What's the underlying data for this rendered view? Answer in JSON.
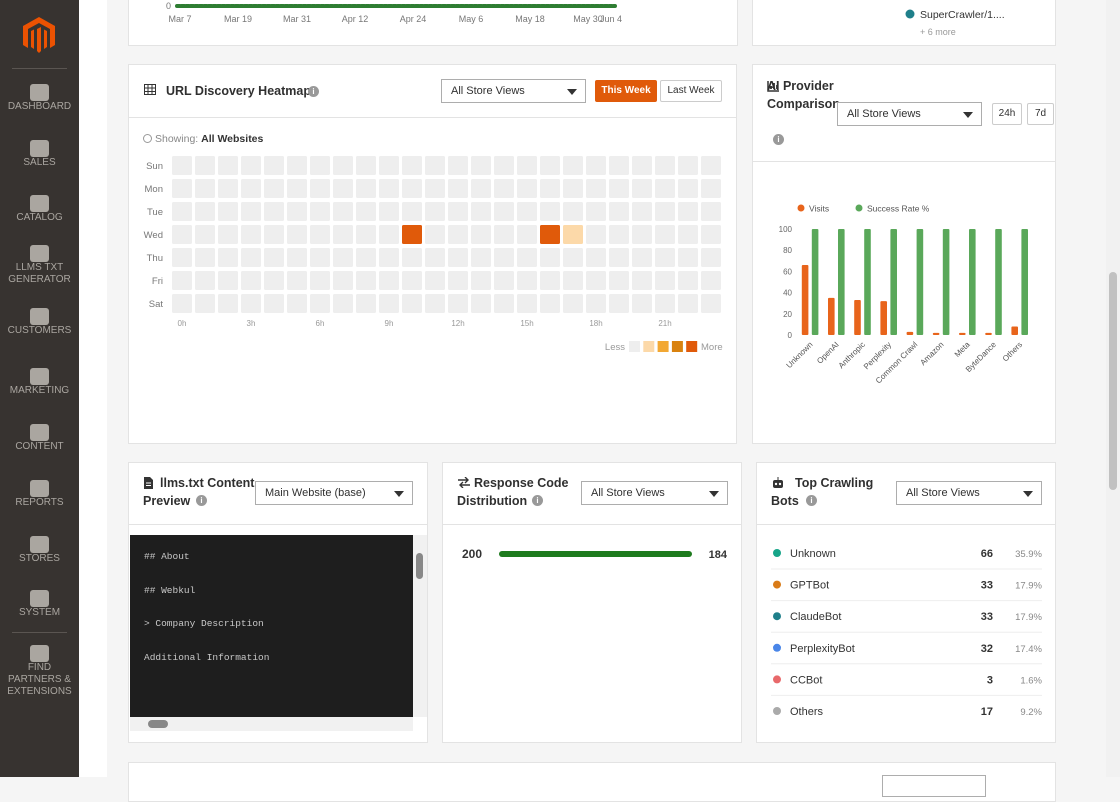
{
  "sidebar": {
    "items": [
      "DASHBOARD",
      "SALES",
      "CATALOG",
      "LLMS TXT GENERATOR",
      "CUSTOMERS",
      "MARKETING",
      "CONTENT",
      "REPORTS",
      "STORES",
      "SYSTEM",
      "FIND PARTNERS & EXTENSIONS"
    ]
  },
  "chart_data": [
    {
      "type": "line",
      "yticks": [
        0
      ],
      "x": [
        "Mar 7",
        "Mar 19",
        "Mar 31",
        "Apr 12",
        "Apr 24",
        "May 6",
        "May 18",
        "May 30",
        "Jun 4"
      ],
      "series": [
        {
          "name": "SuperCrawler/1....",
          "color": "#1f7f8a"
        }
      ],
      "more": "+ 6 more"
    },
    {
      "type": "bar",
      "title": "AI Provider Comparison",
      "store_select": "All Store Views",
      "buttons": [
        "24h",
        "7d"
      ],
      "categories": [
        "Unknown",
        "OpenAI",
        "Anthropic",
        "Perplexity",
        "Common Crawl",
        "Amazon",
        "Meta",
        "ByteDance",
        "Others"
      ],
      "series": [
        {
          "name": "Visits",
          "color": "#e8641b",
          "values": [
            66,
            35,
            33,
            32,
            3,
            2,
            2,
            2,
            8
          ]
        },
        {
          "name": "Success Rate %",
          "color": "#5aa85a",
          "values": [
            100,
            100,
            100,
            100,
            100,
            100,
            100,
            100,
            100
          ]
        }
      ],
      "ylim": [
        0,
        100
      ],
      "yticks": [
        0,
        20,
        40,
        60,
        80,
        100
      ],
      "grid": false
    }
  ],
  "heatmap": {
    "title": "URL Discovery Heatmap",
    "store_select": "All Store Views",
    "buttons": [
      "This Week",
      "Last Week"
    ],
    "showing_label": "Showing:",
    "showing_value": "All Websites",
    "days": [
      "Sun",
      "Mon",
      "Tue",
      "Wed",
      "Thu",
      "Fri",
      "Sat"
    ],
    "hour_labels": [
      "0h",
      "3h",
      "6h",
      "9h",
      "12h",
      "15h",
      "18h",
      "21h"
    ],
    "legend_less": "Less",
    "legend_more": "More",
    "scale_colors": [
      "#eeeeee",
      "#fcd9a9",
      "#f2a833",
      "#d9820f",
      "#e05a0a"
    ],
    "cells": [
      [
        0,
        0,
        0,
        0,
        0,
        0,
        0,
        0,
        0,
        0,
        0,
        0,
        0,
        0,
        0,
        0,
        0,
        0,
        0,
        0,
        0,
        0,
        0,
        0
      ],
      [
        0,
        0,
        0,
        0,
        0,
        0,
        0,
        0,
        0,
        0,
        0,
        0,
        0,
        0,
        0,
        0,
        0,
        0,
        0,
        0,
        0,
        0,
        0,
        0
      ],
      [
        0,
        0,
        0,
        0,
        0,
        0,
        0,
        0,
        0,
        0,
        0,
        0,
        0,
        0,
        0,
        0,
        0,
        0,
        0,
        0,
        0,
        0,
        0,
        0
      ],
      [
        0,
        0,
        0,
        0,
        0,
        0,
        0,
        0,
        0,
        0,
        4,
        0,
        0,
        0,
        0,
        0,
        4,
        1,
        0,
        0,
        0,
        0,
        0,
        0
      ],
      [
        0,
        0,
        0,
        0,
        0,
        0,
        0,
        0,
        0,
        0,
        0,
        0,
        0,
        0,
        0,
        0,
        0,
        0,
        0,
        0,
        0,
        0,
        0,
        0
      ],
      [
        0,
        0,
        0,
        0,
        0,
        0,
        0,
        0,
        0,
        0,
        0,
        0,
        0,
        0,
        0,
        0,
        0,
        0,
        0,
        0,
        0,
        0,
        0,
        0
      ],
      [
        0,
        0,
        0,
        0,
        0,
        0,
        0,
        0,
        0,
        0,
        0,
        0,
        0,
        0,
        0,
        0,
        0,
        0,
        0,
        0,
        0,
        0,
        0,
        0
      ]
    ]
  },
  "llms_preview": {
    "title": "llms.txt Content Preview",
    "site_select": "Main Website (base)",
    "lines": [
      "## About",
      "## Webkul",
      "> Company Description",
      "Additional Information"
    ]
  },
  "response_codes": {
    "title": "Response Code Distribution",
    "store_select": "All Store Views",
    "rows": [
      {
        "code": "200",
        "count": 184,
        "color": "#1e7b1e"
      }
    ]
  },
  "top_bots": {
    "title": "Top Crawling Bots",
    "store_select": "All Store Views",
    "rows": [
      {
        "name": "Unknown",
        "visits": 66,
        "share": "35.9%",
        "color": "#17a589"
      },
      {
        "name": "GPTBot",
        "visits": 33,
        "share": "17.9%",
        "color": "#d97b18"
      },
      {
        "name": "ClaudeBot",
        "visits": 33,
        "share": "17.9%",
        "color": "#1f7f8a"
      },
      {
        "name": "PerplexityBot",
        "visits": 32,
        "share": "17.4%",
        "color": "#4a86e8"
      },
      {
        "name": "CCBot",
        "visits": 3,
        "share": "1.6%",
        "color": "#e8696b"
      },
      {
        "name": "Others",
        "visits": 17,
        "share": "9.2%",
        "color": "#aaaaaa"
      }
    ]
  }
}
